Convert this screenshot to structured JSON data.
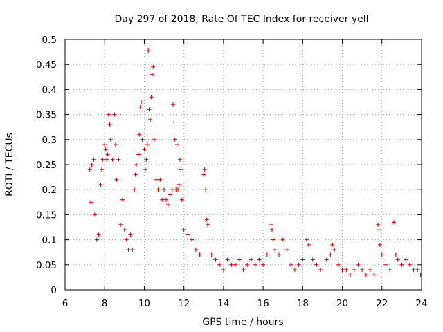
{
  "chart_data": {
    "type": "scatter",
    "title": "Day 297 of 2018, Rate Of TEC Index for receiver yell",
    "xlabel": "GPS time / hours",
    "ylabel": "ROTI / TECUs",
    "xlim": [
      6,
      24
    ],
    "ylim": [
      0,
      0.5
    ],
    "xticks": [
      "6",
      "8",
      "10",
      "12",
      "14",
      "16",
      "18",
      "20",
      "22",
      "24"
    ],
    "yticks": [
      "0",
      "0.05",
      "0.1",
      "0.15",
      "0.2",
      "0.25",
      "0.3",
      "0.35",
      "0.4",
      "0.45",
      "0.5"
    ],
    "grid": true,
    "marker": "+",
    "color": "#e00000",
    "series": [
      {
        "name": "ROTI",
        "points": [
          [
            7.25,
            0.24
          ],
          [
            7.3,
            0.175
          ],
          [
            7.35,
            0.25
          ],
          [
            7.45,
            0.26
          ],
          [
            7.5,
            0.15
          ],
          [
            7.6,
            0.1
          ],
          [
            7.7,
            0.11
          ],
          [
            7.8,
            0.21
          ],
          [
            7.85,
            0.24
          ],
          [
            7.9,
            0.26
          ],
          [
            8.0,
            0.29
          ],
          [
            8.05,
            0.28
          ],
          [
            8.1,
            0.26
          ],
          [
            8.15,
            0.27
          ],
          [
            8.2,
            0.35
          ],
          [
            8.25,
            0.33
          ],
          [
            8.3,
            0.3
          ],
          [
            8.4,
            0.26
          ],
          [
            8.5,
            0.35
          ],
          [
            8.55,
            0.29
          ],
          [
            8.6,
            0.22
          ],
          [
            8.7,
            0.26
          ],
          [
            8.8,
            0.13
          ],
          [
            8.9,
            0.18
          ],
          [
            9.0,
            0.12
          ],
          [
            9.1,
            0.1
          ],
          [
            9.2,
            0.08
          ],
          [
            9.3,
            0.11
          ],
          [
            9.4,
            0.08
          ],
          [
            9.5,
            0.2
          ],
          [
            9.55,
            0.23
          ],
          [
            9.6,
            0.25
          ],
          [
            9.7,
            0.27
          ],
          [
            9.75,
            0.31
          ],
          [
            9.8,
            0.365
          ],
          [
            9.85,
            0.375
          ],
          [
            9.9,
            0.3
          ],
          [
            10.0,
            0.28
          ],
          [
            10.05,
            0.24
          ],
          [
            10.1,
            0.26
          ],
          [
            10.15,
            0.29
          ],
          [
            10.2,
            0.478
          ],
          [
            10.25,
            0.36
          ],
          [
            10.3,
            0.34
          ],
          [
            10.35,
            0.385
          ],
          [
            10.4,
            0.43
          ],
          [
            10.45,
            0.445
          ],
          [
            10.5,
            0.3
          ],
          [
            10.6,
            0.22
          ],
          [
            10.7,
            0.2
          ],
          [
            10.8,
            0.22
          ],
          [
            10.9,
            0.18
          ],
          [
            11.0,
            0.2
          ],
          [
            11.1,
            0.18
          ],
          [
            11.2,
            0.17
          ],
          [
            11.3,
            0.19
          ],
          [
            11.4,
            0.2
          ],
          [
            11.45,
            0.37
          ],
          [
            11.5,
            0.335
          ],
          [
            11.55,
            0.3
          ],
          [
            11.6,
            0.2
          ],
          [
            11.65,
            0.29
          ],
          [
            11.7,
            0.2
          ],
          [
            11.75,
            0.21
          ],
          [
            11.8,
            0.26
          ],
          [
            11.85,
            0.24
          ],
          [
            11.9,
            0.18
          ],
          [
            12.0,
            0.12
          ],
          [
            12.2,
            0.11
          ],
          [
            12.4,
            0.1
          ],
          [
            12.6,
            0.08
          ],
          [
            12.8,
            0.07
          ],
          [
            13.0,
            0.23
          ],
          [
            13.05,
            0.24
          ],
          [
            13.1,
            0.2
          ],
          [
            13.15,
            0.14
          ],
          [
            13.2,
            0.13
          ],
          [
            13.4,
            0.07
          ],
          [
            13.6,
            0.06
          ],
          [
            13.8,
            0.05
          ],
          [
            14.0,
            0.04
          ],
          [
            14.2,
            0.06
          ],
          [
            14.4,
            0.05
          ],
          [
            14.6,
            0.05
          ],
          [
            14.8,
            0.06
          ],
          [
            15.0,
            0.04
          ],
          [
            15.2,
            0.05
          ],
          [
            15.4,
            0.06
          ],
          [
            15.6,
            0.05
          ],
          [
            15.8,
            0.06
          ],
          [
            16.0,
            0.05
          ],
          [
            16.2,
            0.07
          ],
          [
            16.4,
            0.13
          ],
          [
            16.45,
            0.12
          ],
          [
            16.5,
            0.1
          ],
          [
            16.6,
            0.08
          ],
          [
            16.8,
            0.07
          ],
          [
            17.0,
            0.1
          ],
          [
            17.2,
            0.08
          ],
          [
            17.4,
            0.05
          ],
          [
            17.6,
            0.04
          ],
          [
            17.8,
            0.05
          ],
          [
            18.0,
            0.06
          ],
          [
            18.2,
            0.1
          ],
          [
            18.3,
            0.09
          ],
          [
            18.5,
            0.06
          ],
          [
            18.7,
            0.05
          ],
          [
            18.9,
            0.04
          ],
          [
            19.2,
            0.06
          ],
          [
            19.4,
            0.07
          ],
          [
            19.5,
            0.09
          ],
          [
            19.6,
            0.08
          ],
          [
            19.8,
            0.05
          ],
          [
            20.0,
            0.04
          ],
          [
            20.2,
            0.04
          ],
          [
            20.4,
            0.03
          ],
          [
            20.6,
            0.04
          ],
          [
            20.8,
            0.05
          ],
          [
            21.0,
            0.04
          ],
          [
            21.2,
            0.03
          ],
          [
            21.4,
            0.04
          ],
          [
            21.6,
            0.03
          ],
          [
            21.8,
            0.13
          ],
          [
            21.85,
            0.12
          ],
          [
            21.9,
            0.09
          ],
          [
            22.0,
            0.07
          ],
          [
            22.2,
            0.05
          ],
          [
            22.4,
            0.04
          ],
          [
            22.6,
            0.135
          ],
          [
            22.7,
            0.07
          ],
          [
            22.8,
            0.06
          ],
          [
            23.0,
            0.05
          ],
          [
            23.2,
            0.06
          ],
          [
            23.4,
            0.05
          ],
          [
            23.6,
            0.04
          ],
          [
            23.8,
            0.04
          ],
          [
            23.95,
            0.03
          ]
        ]
      }
    ]
  }
}
